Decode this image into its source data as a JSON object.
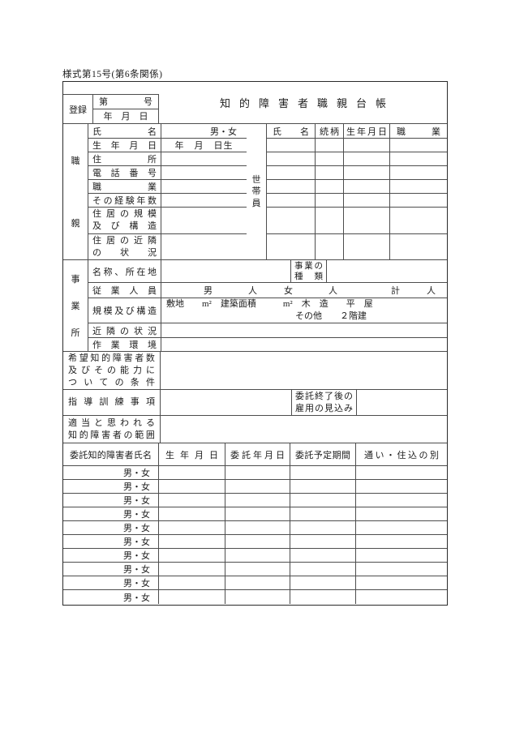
{
  "page": {
    "form_number": "様式第15号(第6条関係)"
  },
  "header": {
    "title": "知的障害者職親台帳",
    "registration_label": "登録",
    "number_label": "第　号",
    "date_label": "年　月　日"
  },
  "shokuoya": {
    "section_label": "職親",
    "setai_label": "世帯員",
    "rows": [
      {
        "label": "氏名",
        "value": "男・女"
      },
      {
        "label": "生年月日",
        "value": "年　月　日生"
      },
      {
        "label": "住所",
        "value": ""
      },
      {
        "label": "電話番号",
        "value": ""
      },
      {
        "label": "職業",
        "value": ""
      },
      {
        "label": "その経験年数",
        "value": ""
      },
      {
        "label_lines": [
          "住居の規模",
          "及び構造"
        ],
        "value": ""
      },
      {
        "label_lines": [
          "住居の近隣",
          "の状況"
        ],
        "value": ""
      }
    ],
    "household_table": {
      "headers": [
        "氏名",
        "続柄",
        "生年月日",
        "職業"
      ],
      "empty_row_count": 7
    }
  },
  "jigyosho": {
    "section_label": "事業所",
    "name_location_label": "名称、所在地",
    "business_type_label_lines": [
      "事業の",
      "種類"
    ],
    "employees_label": "従業人員",
    "employees_value": "男　　　　人　　　女　　　　人　　　　　　計　　　人",
    "scale_label": "規模及び構造",
    "scale_value_line1": "敷地　　m²　建築面積　　　m²　木　造　　平　屋",
    "scale_value_line2": "その他　　２階建",
    "neighborhood_label": "近隣の状況",
    "work_env_label": "作業環境"
  },
  "conditions": {
    "label_lines": [
      "希望知的障害者数",
      "及びその能力に",
      "ついての条件"
    ]
  },
  "training": {
    "label": "指導訓練事項",
    "post_commission_label_lines": [
      "委託終了後の",
      "雇用の見込み"
    ]
  },
  "suitable_range": {
    "label_lines": [
      "適当と思われる",
      "知的障害者の範囲"
    ]
  },
  "consignment_table": {
    "headers": [
      "委託知的障害者氏名",
      "生年月日",
      "委託年月日",
      "委託予定期間",
      "通い・住込の別"
    ],
    "gender_label": "男・女",
    "row_count": 10
  }
}
